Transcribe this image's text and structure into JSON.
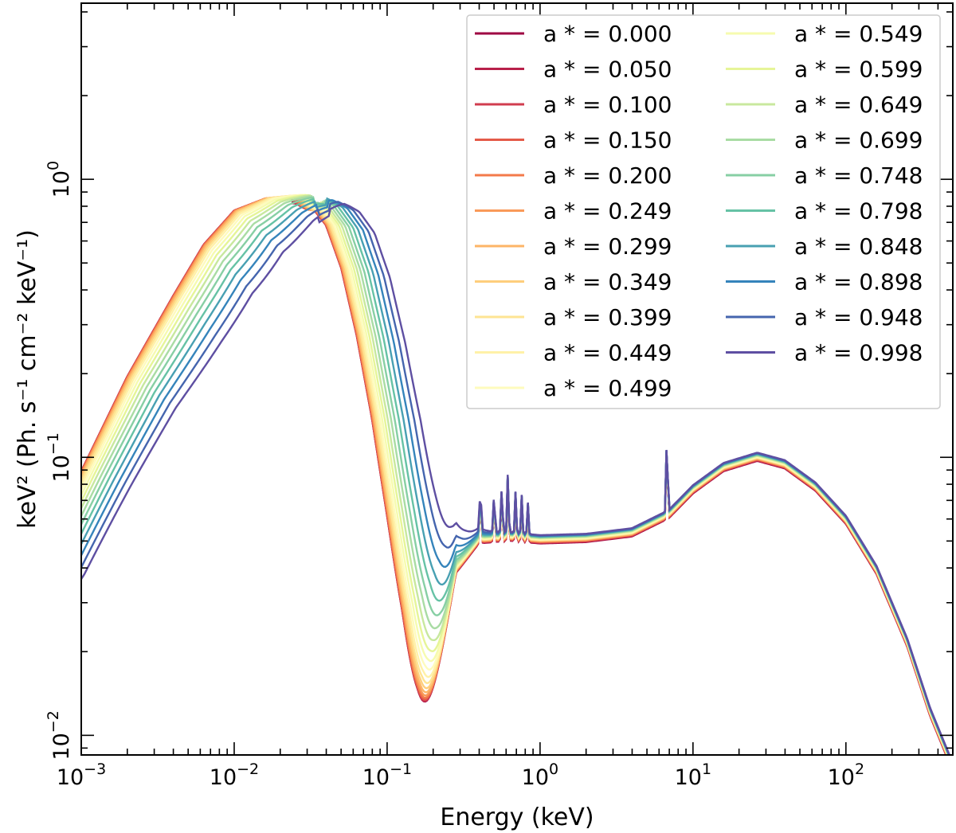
{
  "chart_data": {
    "type": "line",
    "xscale": "log",
    "yscale": "log",
    "xlabel": "Energy (keV)",
    "ylabel": "keV² (Ph. s⁻¹ cm⁻² keV⁻¹)",
    "xlim": [
      0.001,
      500
    ],
    "ylim": [
      0.0085,
      4.3
    ],
    "x_ticks": [
      {
        "value": 0.001,
        "base": "10",
        "exp": "−3"
      },
      {
        "value": 0.01,
        "base": "10",
        "exp": "−2"
      },
      {
        "value": 0.1,
        "base": "10",
        "exp": "−1"
      },
      {
        "value": 1,
        "base": "10",
        "exp": "0"
      },
      {
        "value": 10,
        "base": "10",
        "exp": "1"
      },
      {
        "value": 100,
        "base": "10",
        "exp": "2"
      }
    ],
    "y_ticks": [
      {
        "value": 0.01,
        "base": "10",
        "exp": "−2"
      },
      {
        "value": 0.1,
        "base": "10",
        "exp": "−1"
      },
      {
        "value": 1,
        "base": "10",
        "exp": "0"
      }
    ],
    "legend_location": "upper-right",
    "legend_columns": 2,
    "legend_prefix": "a * = ",
    "series": [
      {
        "name": "a * = 0.000",
        "spin": 0.0,
        "color": "#9e0142"
      },
      {
        "name": "a * = 0.050",
        "spin": 0.05,
        "color": "#b8204a"
      },
      {
        "name": "a * = 0.100",
        "spin": 0.1,
        "color": "#d13d4f"
      },
      {
        "name": "a * = 0.150",
        "spin": 0.15,
        "color": "#e45b49"
      },
      {
        "name": "a * = 0.200",
        "spin": 0.2,
        "color": "#f37a4a"
      },
      {
        "name": "a * = 0.249",
        "spin": 0.249,
        "color": "#f99a59"
      },
      {
        "name": "a * = 0.299",
        "spin": 0.299,
        "color": "#fdb567"
      },
      {
        "name": "a * = 0.349",
        "spin": 0.349,
        "color": "#fece7c"
      },
      {
        "name": "a * = 0.399",
        "spin": 0.399,
        "color": "#fee493"
      },
      {
        "name": "a * = 0.449",
        "spin": 0.449,
        "color": "#fff1a8"
      },
      {
        "name": "a * = 0.499",
        "spin": 0.499,
        "color": "#fefbbd"
      },
      {
        "name": "a * = 0.549",
        "spin": 0.549,
        "color": "#f6fbaf"
      },
      {
        "name": "a * = 0.599",
        "spin": 0.599,
        "color": "#e6f598"
      },
      {
        "name": "a * = 0.649",
        "spin": 0.649,
        "color": "#c8e89e"
      },
      {
        "name": "a * = 0.699",
        "spin": 0.699,
        "color": "#a9dca4"
      },
      {
        "name": "a * = 0.748",
        "spin": 0.748,
        "color": "#87cfa4"
      },
      {
        "name": "a * = 0.798",
        "spin": 0.798,
        "color": "#66c2a5"
      },
      {
        "name": "a * = 0.848",
        "spin": 0.848,
        "color": "#48a0b2"
      },
      {
        "name": "a * = 0.898",
        "spin": 0.898,
        "color": "#3584bb"
      },
      {
        "name": "a * = 0.948",
        "spin": 0.948,
        "color": "#4565ae"
      },
      {
        "name": "a * = 0.998",
        "spin": 0.998,
        "color": "#5e4fa2"
      }
    ]
  }
}
